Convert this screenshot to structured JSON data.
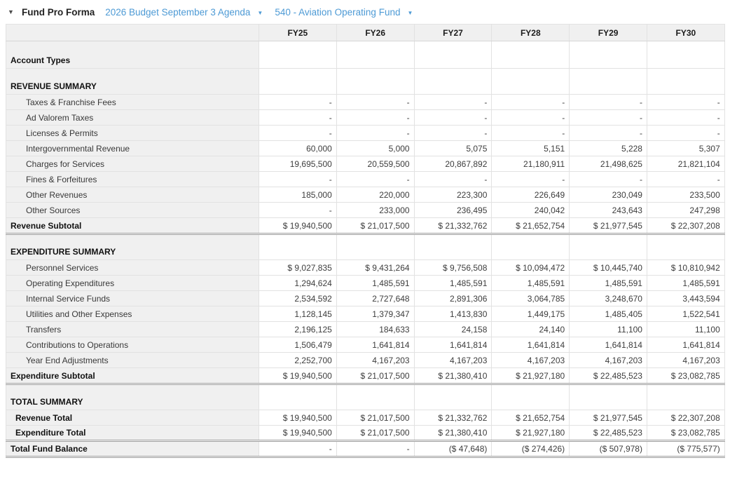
{
  "header": {
    "collapse_icon": "▼",
    "title": "Fund Pro Forma",
    "budget_dropdown": {
      "label": "2026 Budget September 3 Agenda",
      "arrow": "▼"
    },
    "fund_dropdown": {
      "label": "540 - Aviation Operating Fund",
      "arrow": "▼"
    }
  },
  "colors": {
    "link_blue": "#4d9ad5",
    "label_column_bg": "#f0f0f0",
    "border_light": "#e2e2e2",
    "border_dark": "#9d9d9d"
  },
  "table": {
    "columns": [
      "FY25",
      "FY26",
      "FY27",
      "FY28",
      "FY29",
      "FY30"
    ],
    "rows": [
      {
        "type": "section",
        "first": true,
        "label": "Account Types",
        "values": [
          "",
          "",
          "",
          "",
          "",
          ""
        ]
      },
      {
        "type": "section",
        "label": "REVENUE SUMMARY",
        "values": [
          "",
          "",
          "",
          "",
          "",
          ""
        ]
      },
      {
        "type": "detail",
        "label": "Taxes & Franchise Fees",
        "values": [
          "-",
          "-",
          "-",
          "-",
          "-",
          "-"
        ]
      },
      {
        "type": "detail",
        "label": "Ad Valorem Taxes",
        "values": [
          "-",
          "-",
          "-",
          "-",
          "-",
          "-"
        ]
      },
      {
        "type": "detail",
        "label": "Licenses & Permits",
        "values": [
          "-",
          "-",
          "-",
          "-",
          "-",
          "-"
        ]
      },
      {
        "type": "detail",
        "label": "Intergovernmental Revenue",
        "values": [
          "60,000",
          "5,000",
          "5,075",
          "5,151",
          "5,228",
          "5,307"
        ]
      },
      {
        "type": "detail",
        "label": "Charges for Services",
        "values": [
          "19,695,500",
          "20,559,500",
          "20,867,892",
          "21,180,911",
          "21,498,625",
          "21,821,104"
        ]
      },
      {
        "type": "detail",
        "label": "Fines & Forfeitures",
        "values": [
          "-",
          "-",
          "-",
          "-",
          "-",
          "-"
        ]
      },
      {
        "type": "detail",
        "label": "Other Revenues",
        "values": [
          "185,000",
          "220,000",
          "223,300",
          "226,649",
          "230,049",
          "233,500"
        ]
      },
      {
        "type": "detail",
        "label": "Other Sources",
        "values": [
          "-",
          "233,000",
          "236,495",
          "240,042",
          "243,643",
          "247,298"
        ]
      },
      {
        "type": "subtotal",
        "label": "Revenue Subtotal",
        "values": [
          "$ 19,940,500",
          "$ 21,017,500",
          "$ 21,332,762",
          "$ 21,652,754",
          "$ 21,977,545",
          "$ 22,307,208"
        ]
      },
      {
        "type": "section",
        "label": "EXPENDITURE SUMMARY",
        "values": [
          "",
          "",
          "",
          "",
          "",
          ""
        ]
      },
      {
        "type": "detail",
        "label": "Personnel Services",
        "values": [
          "$ 9,027,835",
          "$ 9,431,264",
          "$ 9,756,508",
          "$ 10,094,472",
          "$ 10,445,740",
          "$ 10,810,942"
        ]
      },
      {
        "type": "detail",
        "label": "Operating Expenditures",
        "values": [
          "1,294,624",
          "1,485,591",
          "1,485,591",
          "1,485,591",
          "1,485,591",
          "1,485,591"
        ]
      },
      {
        "type": "detail",
        "label": "Internal Service Funds",
        "values": [
          "2,534,592",
          "2,727,648",
          "2,891,306",
          "3,064,785",
          "3,248,670",
          "3,443,594"
        ]
      },
      {
        "type": "detail",
        "label": "Utilities and Other Expenses",
        "values": [
          "1,128,145",
          "1,379,347",
          "1,413,830",
          "1,449,175",
          "1,485,405",
          "1,522,541"
        ]
      },
      {
        "type": "detail",
        "label": "Transfers",
        "values": [
          "2,196,125",
          "184,633",
          "24,158",
          "24,140",
          "11,100",
          "11,100"
        ]
      },
      {
        "type": "detail",
        "label": "Contributions to Operations",
        "values": [
          "1,506,479",
          "1,641,814",
          "1,641,814",
          "1,641,814",
          "1,641,814",
          "1,641,814"
        ]
      },
      {
        "type": "detail",
        "label": "Year End Adjustments",
        "values": [
          "2,252,700",
          "4,167,203",
          "4,167,203",
          "4,167,203",
          "4,167,203",
          "4,167,203"
        ]
      },
      {
        "type": "subtotal",
        "label": "Expenditure Subtotal",
        "values": [
          "$ 19,940,500",
          "$ 21,017,500",
          "$ 21,380,410",
          "$ 21,927,180",
          "$ 22,485,523",
          "$ 23,082,785"
        ]
      },
      {
        "type": "section",
        "label": "TOTAL SUMMARY",
        "values": [
          "",
          "",
          "",
          "",
          "",
          ""
        ]
      },
      {
        "type": "total",
        "label": "Revenue Total",
        "values": [
          "$ 19,940,500",
          "$ 21,017,500",
          "$ 21,332,762",
          "$ 21,652,754",
          "$ 21,977,545",
          "$ 22,307,208"
        ]
      },
      {
        "type": "total",
        "label": "Expenditure Total",
        "values": [
          "$ 19,940,500",
          "$ 21,017,500",
          "$ 21,380,410",
          "$ 21,927,180",
          "$ 22,485,523",
          "$ 23,082,785"
        ]
      },
      {
        "type": "grand_total",
        "label": "Total Fund Balance",
        "values": [
          "-",
          "-",
          "($ 47,648)",
          "($ 274,426)",
          "($ 507,978)",
          "($ 775,577)"
        ]
      }
    ]
  }
}
